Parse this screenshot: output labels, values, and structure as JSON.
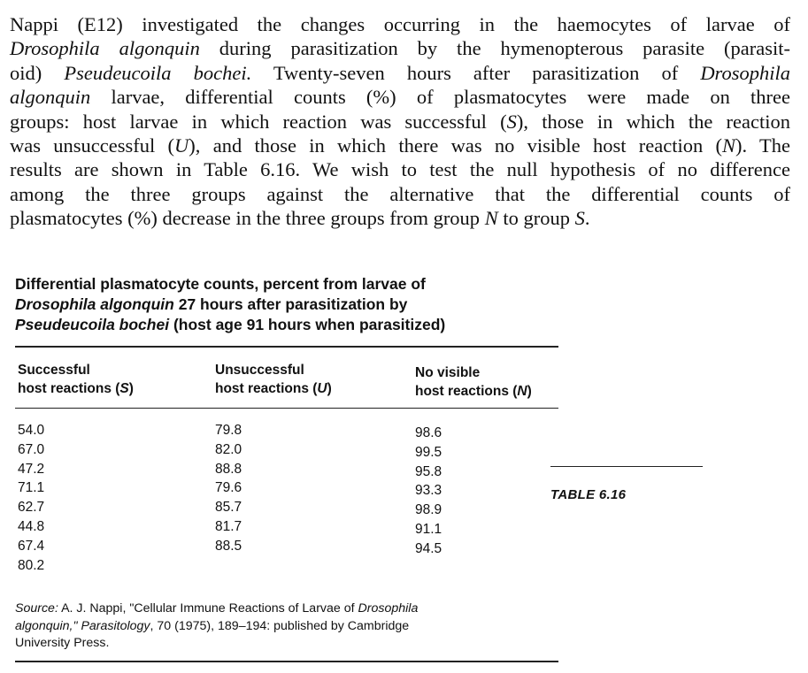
{
  "paragraph": {
    "l1": "Nappi (E12) investigated the changes occurring in the haemocytes of larvae of",
    "l2_italic": "Drosophila algonquin",
    "l2_rest": " during parasitization by the hymenopterous parasite (parasit-",
    "l3_a": "oid) ",
    "l3_italic": "Pseudeucoila bochei.",
    "l3_b": " Twenty-seven hours after parasitization of ",
    "l3_italic2": "Drosophila",
    "l4_italic": "algonquin",
    "l4_rest": " larvae, differential counts (%) of plasmatocytes were made on three",
    "l5_a": "groups: host larvae in which reaction was successful (",
    "l5_s": "S",
    "l5_b": "), those in which the reaction",
    "l6_a": "was unsuccessful (",
    "l6_u": "U",
    "l6_b": "), and those in which there was no visible host reaction (",
    "l6_n": "N",
    "l6_c": "). The",
    "l7": "results are shown in Table 6.16. We wish to test the null hypothesis of no difference",
    "l8": "among the three groups against the alternative that the differential counts of",
    "l9_a": "plasmatocytes (%) decrease in the three groups from group ",
    "l9_n": "N",
    "l9_b": " to group ",
    "l9_s": "S",
    "l9_c": "."
  },
  "caption": {
    "l1": "Differential plasmatocyte counts, percent from larvae of",
    "l2_italic": "Drosophila algonquin",
    "l2_rest": " 27 hours after parasitization by",
    "l3_italic": "Pseudeucoila bochei",
    "l3_rest": " (host age 91 hours when parasitized)"
  },
  "table": {
    "headers": [
      {
        "line1": "Successful",
        "line2": "host reactions (",
        "sym": "S",
        "close": ")"
      },
      {
        "line1": "Unsuccessful",
        "line2": "host reactions (",
        "sym": "U",
        "close": ")"
      },
      {
        "line1": "No visible",
        "line2": "host reactions (",
        "sym": "N",
        "close": ")"
      }
    ],
    "columns": [
      [
        "54.0",
        "67.0",
        "47.2",
        "71.1",
        "62.7",
        "44.8",
        "67.4",
        "80.2"
      ],
      [
        "79.8",
        "82.0",
        "88.8",
        "79.6",
        "85.7",
        "81.7",
        "88.5"
      ],
      [
        "98.6",
        "99.5",
        "95.8",
        "93.3",
        "98.9",
        "91.1",
        "94.5"
      ]
    ]
  },
  "table_label": "TABLE 6.16",
  "source": {
    "label": "Source:",
    "a": " A. J. Nappi, \"Cellular Immune Reactions of Larvae of ",
    "italic1": "Drosophila",
    "italic2": "algonquin,\" Parasitology",
    "b": ", 70 (1975), 189–194: published by Cambridge",
    "c": "University Press."
  }
}
